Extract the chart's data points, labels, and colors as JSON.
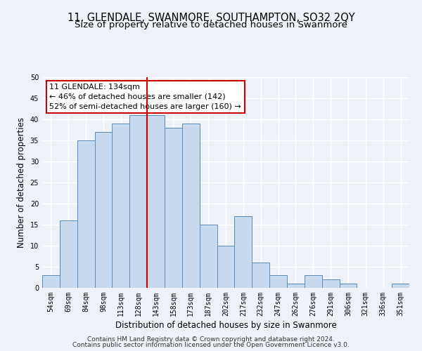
{
  "title": "11, GLENDALE, SWANMORE, SOUTHAMPTON, SO32 2QY",
  "subtitle": "Size of property relative to detached houses in Swanmore",
  "xlabel": "Distribution of detached houses by size in Swanmore",
  "ylabel": "Number of detached properties",
  "bar_labels": [
    "54sqm",
    "69sqm",
    "84sqm",
    "98sqm",
    "113sqm",
    "128sqm",
    "143sqm",
    "158sqm",
    "173sqm",
    "187sqm",
    "202sqm",
    "217sqm",
    "232sqm",
    "247sqm",
    "262sqm",
    "276sqm",
    "291sqm",
    "306sqm",
    "321sqm",
    "336sqm",
    "351sqm"
  ],
  "bar_values": [
    3,
    16,
    35,
    37,
    39,
    41,
    41,
    38,
    39,
    15,
    10,
    17,
    6,
    3,
    1,
    3,
    2,
    1,
    0,
    0,
    1
  ],
  "bar_color": "#c9d9ed",
  "bar_edge_color": "#5b8db8",
  "vline_x": 5.5,
  "vline_color": "#cc0000",
  "annotation_title": "11 GLENDALE: 134sqm",
  "annotation_line1": "← 46% of detached houses are smaller (142)",
  "annotation_line2": "52% of semi-detached houses are larger (160) →",
  "annotation_box_color": "#ffffff",
  "annotation_box_edge": "#cc0000",
  "ylim": [
    0,
    50
  ],
  "yticks": [
    0,
    5,
    10,
    15,
    20,
    25,
    30,
    35,
    40,
    45,
    50
  ],
  "footer1": "Contains HM Land Registry data © Crown copyright and database right 2024.",
  "footer2": "Contains public sector information licensed under the Open Government Licence v3.0.",
  "bg_color": "#eef2f8",
  "plot_bg_color": "#eef2f8",
  "grid_color": "#ffffff",
  "title_fontsize": 10.5,
  "subtitle_fontsize": 9.5,
  "axis_label_fontsize": 8.5,
  "tick_fontsize": 7,
  "footer_fontsize": 6.5
}
